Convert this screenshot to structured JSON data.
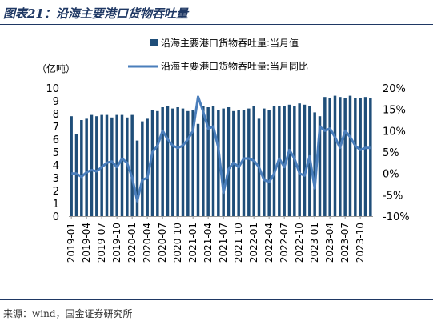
{
  "header": {
    "title": "图表21：沿海主要港口货物吞吐量"
  },
  "footer": {
    "source": "来源：wind，国金证券研究所"
  },
  "colors": {
    "bar": "#1f4e79",
    "line": "#4a7ebb",
    "title": "#1f3864"
  },
  "chart_data": {
    "type": "bar",
    "y_unit_label": "（亿吨）",
    "y_left_range": [
      0,
      10
    ],
    "y_left_ticks": [
      "0",
      "1",
      "2",
      "3",
      "4",
      "5",
      "6",
      "7",
      "8",
      "9",
      "10"
    ],
    "y_right_range": [
      -10,
      20
    ],
    "y_right_ticks": [
      "-10%",
      "-5%",
      "0%",
      "5%",
      "10%",
      "15%",
      "20%"
    ],
    "grid": false,
    "legend_position": "top",
    "x_tick_labels": [
      "2019-01",
      "2019-04",
      "2019-07",
      "2019-10",
      "2020-01",
      "2020-04",
      "2020-07",
      "2020-10",
      "2021-01",
      "2021-04",
      "2021-07",
      "2021-10",
      "2022-01",
      "2022-04",
      "2022-07",
      "2022-10",
      "2023-01",
      "2023-04",
      "2023-07",
      "2023-10"
    ],
    "x": [
      "2019-01",
      "2019-02",
      "2019-03",
      "2019-04",
      "2019-05",
      "2019-06",
      "2019-07",
      "2019-08",
      "2019-09",
      "2019-10",
      "2019-11",
      "2019-12",
      "2020-01",
      "2020-02",
      "2020-03",
      "2020-04",
      "2020-05",
      "2020-06",
      "2020-07",
      "2020-08",
      "2020-09",
      "2020-10",
      "2020-11",
      "2020-12",
      "2021-01",
      "2021-02",
      "2021-03",
      "2021-04",
      "2021-05",
      "2021-06",
      "2021-07",
      "2021-08",
      "2021-09",
      "2021-10",
      "2021-11",
      "2021-12",
      "2022-01",
      "2022-02",
      "2022-03",
      "2022-04",
      "2022-05",
      "2022-06",
      "2022-07",
      "2022-08",
      "2022-09",
      "2022-10",
      "2022-11",
      "2022-12",
      "2023-01",
      "2023-02",
      "2023-03",
      "2023-04",
      "2023-05",
      "2023-06",
      "2023-07",
      "2023-08",
      "2023-09",
      "2023-10",
      "2023-11",
      "2023-12"
    ],
    "series": [
      {
        "name": "沿海主要港口货物吞吐量:当月值",
        "type": "bar",
        "axis": "left",
        "values": [
          7.8,
          6.4,
          7.5,
          7.6,
          7.9,
          7.8,
          7.9,
          7.9,
          7.7,
          7.9,
          7.9,
          7.7,
          7.9,
          5.9,
          7.4,
          7.6,
          8.3,
          8.2,
          8.5,
          8.6,
          8.4,
          8.5,
          8.4,
          8.2,
          8.3,
          7.2,
          8.6,
          8.5,
          8.6,
          8.3,
          8.4,
          8.5,
          8.2,
          8.3,
          8.3,
          8.4,
          8.6,
          7.6,
          8.4,
          8.3,
          8.6,
          8.6,
          8.6,
          8.7,
          8.6,
          8.8,
          8.7,
          8.6,
          8.1,
          7.8,
          9.3,
          9.2,
          9.4,
          9.3,
          9.2,
          9.4,
          9.2,
          9.2,
          9.3,
          9.2
        ]
      },
      {
        "name": "沿海主要港口货物吞吐量:当月同比",
        "type": "line",
        "axis": "right",
        "values": [
          0.0,
          0.0,
          -0.8,
          0.3,
          0.8,
          0.5,
          1.5,
          2.5,
          2.8,
          1.5,
          3.5,
          2.5,
          -1.0,
          -6.5,
          -1.5,
          -1.0,
          5.0,
          6.5,
          10.0,
          8.0,
          6.5,
          6.0,
          6.5,
          8.0,
          10.0,
          18.0,
          14.5,
          10.5,
          11.0,
          6.0,
          -4.5,
          1.0,
          2.5,
          1.5,
          3.5,
          3.5,
          3.0,
          1.5,
          -1.5,
          -2.0,
          0.0,
          3.5,
          1.5,
          5.5,
          3.5,
          0.0,
          -0.5,
          4.0,
          -3.5,
          11.0,
          10.0,
          10.5,
          8.5,
          6.0,
          10.0,
          8.5,
          6.5,
          5.5,
          6.0,
          6.0
        ]
      }
    ]
  }
}
